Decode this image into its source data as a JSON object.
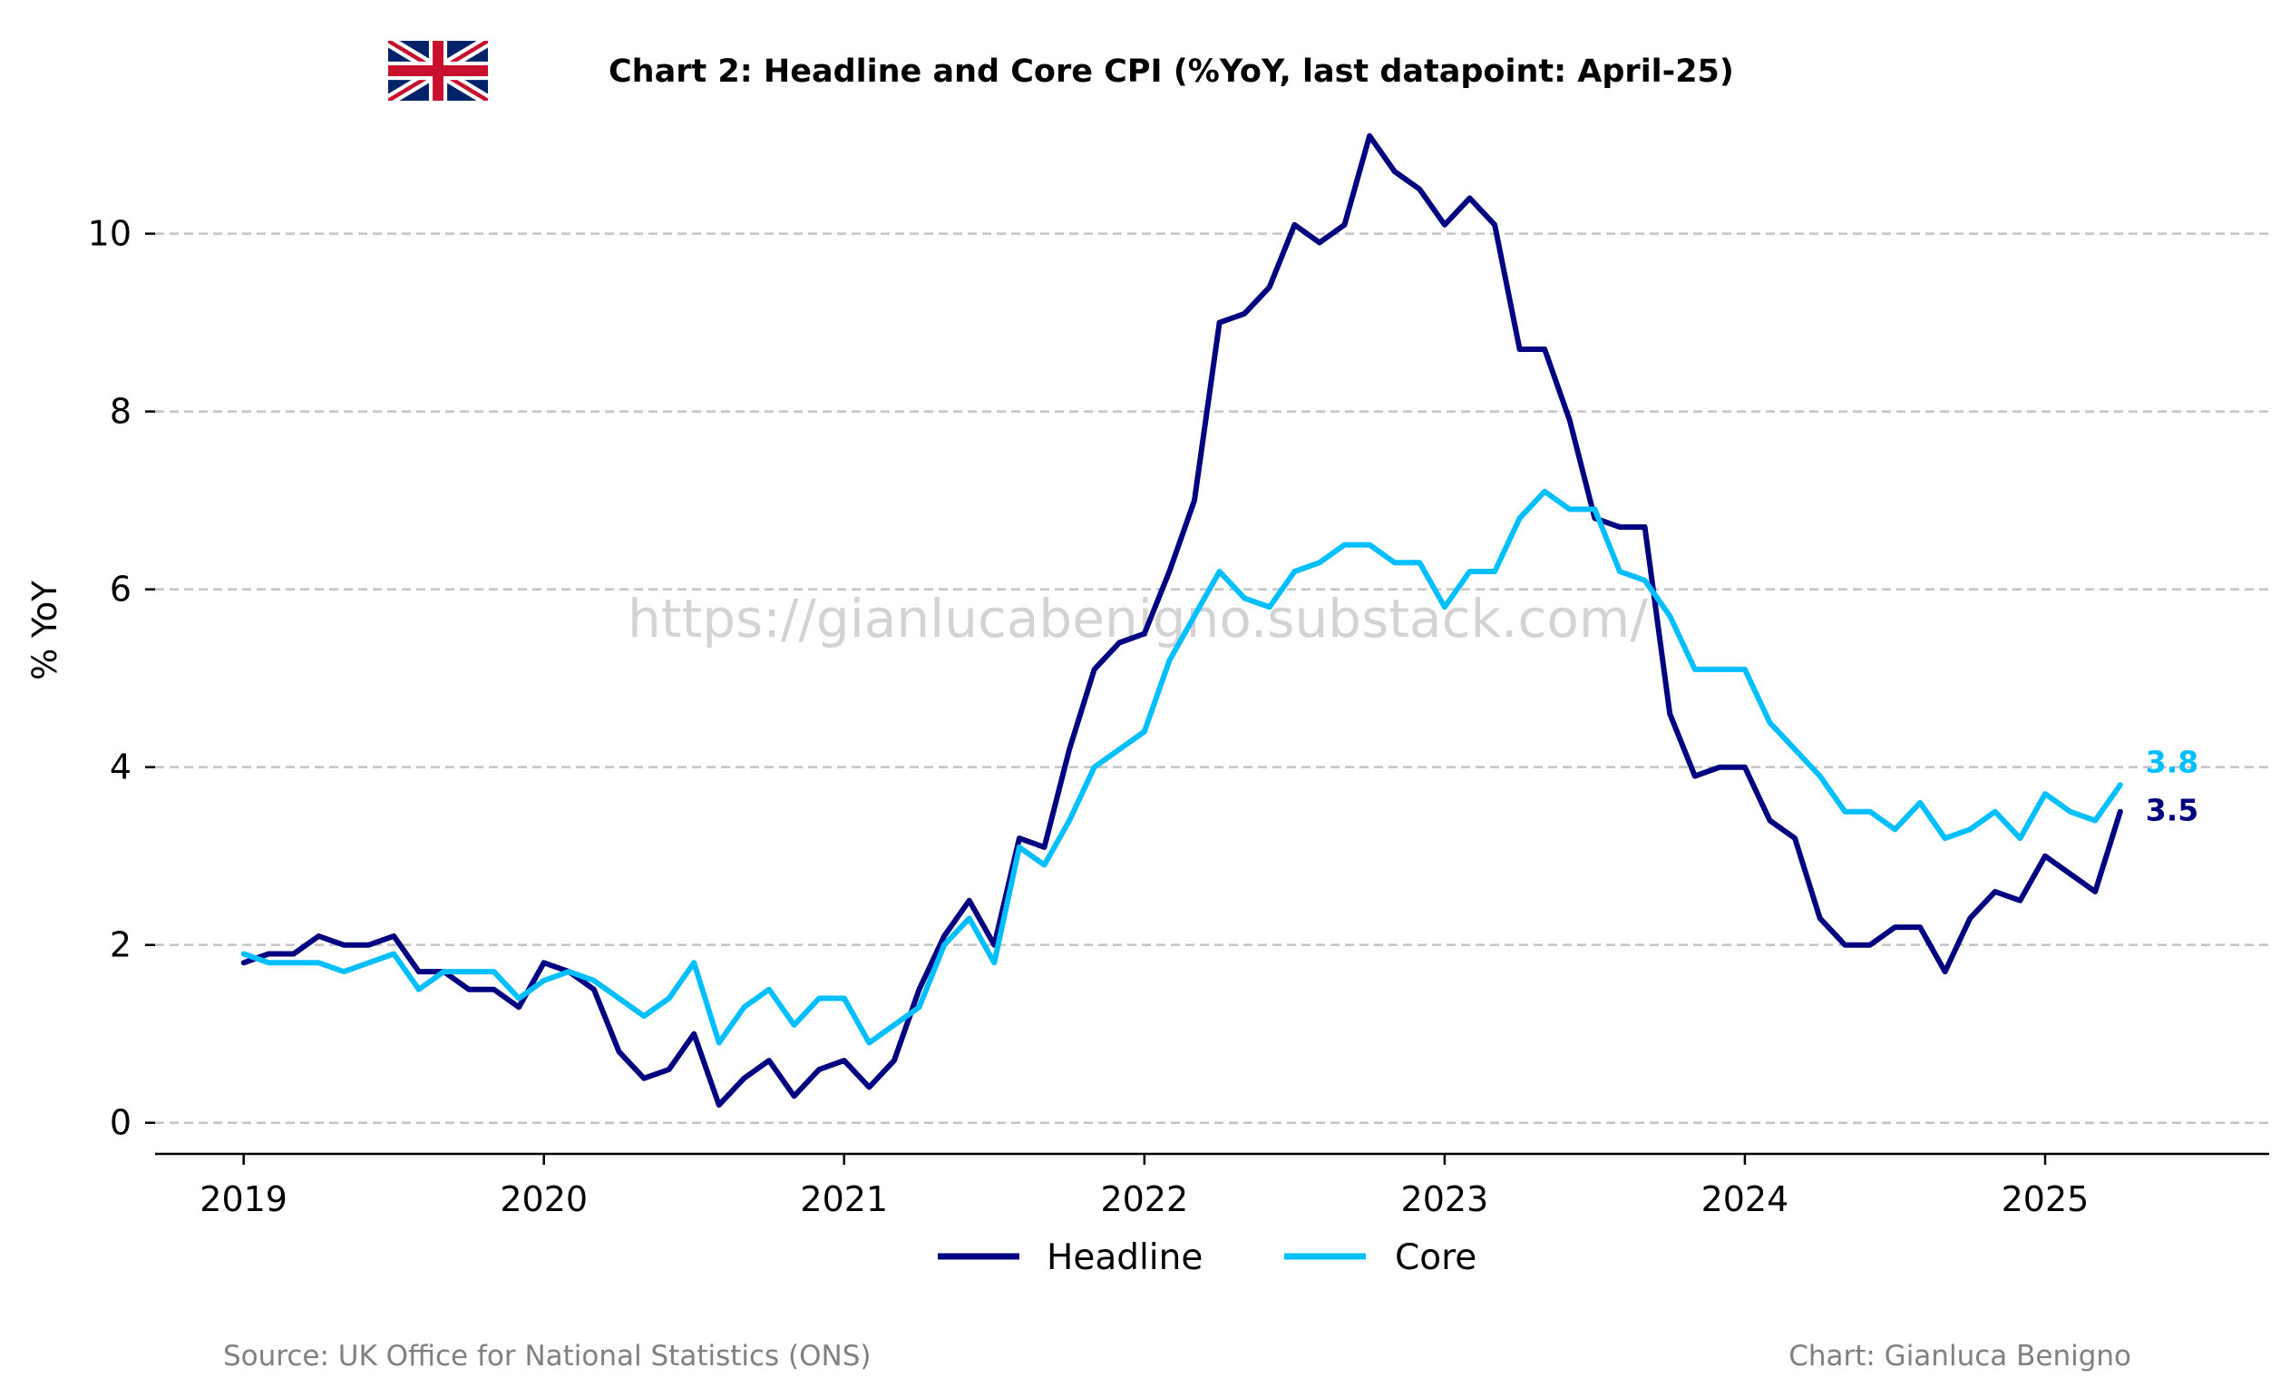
{
  "chart_data": {
    "type": "line",
    "title": "Chart 2: Headline and Core CPI (%YoY, last datapoint: April-25)",
    "ylabel": "% YoY",
    "xlabel": "",
    "ylim": [
      -0.35,
      11.2
    ],
    "xlim": [
      "2018-09-15",
      "2025-09-30"
    ],
    "y_ticks": [
      0,
      2,
      4,
      6,
      8,
      10
    ],
    "x_ticks": [
      "2019",
      "2020",
      "2021",
      "2022",
      "2023",
      "2024",
      "2025"
    ],
    "grid": "horizontal dashed",
    "legend_position": "bottom-center",
    "x_start": "2019-01",
    "frequency": "monthly",
    "series": [
      {
        "name": "Headline",
        "color": "#000080",
        "end_label": "3.5",
        "values": [
          1.8,
          1.9,
          1.9,
          2.1,
          2.0,
          2.0,
          2.1,
          1.7,
          1.7,
          1.5,
          1.5,
          1.3,
          1.8,
          1.7,
          1.5,
          0.8,
          0.5,
          0.6,
          1.0,
          0.2,
          0.5,
          0.7,
          0.3,
          0.6,
          0.7,
          0.4,
          0.7,
          1.5,
          2.1,
          2.5,
          2.0,
          3.2,
          3.1,
          4.2,
          5.1,
          5.4,
          5.5,
          6.2,
          7.0,
          9.0,
          9.1,
          9.4,
          10.1,
          9.9,
          10.1,
          11.1,
          10.7,
          10.5,
          10.1,
          10.4,
          10.1,
          8.7,
          8.7,
          7.9,
          6.8,
          6.7,
          6.7,
          4.6,
          3.9,
          4.0,
          4.0,
          3.4,
          3.2,
          2.3,
          2.0,
          2.0,
          2.2,
          2.2,
          1.7,
          2.3,
          2.6,
          2.5,
          3.0,
          2.8,
          2.6,
          3.5
        ]
      },
      {
        "name": "Core",
        "color": "#00BFFF",
        "end_label": "3.8",
        "values": [
          1.9,
          1.8,
          1.8,
          1.8,
          1.7,
          1.8,
          1.9,
          1.5,
          1.7,
          1.7,
          1.7,
          1.4,
          1.6,
          1.7,
          1.6,
          1.4,
          1.2,
          1.4,
          1.8,
          0.9,
          1.3,
          1.5,
          1.1,
          1.4,
          1.4,
          0.9,
          1.1,
          1.3,
          2.0,
          2.3,
          1.8,
          3.1,
          2.9,
          3.4,
          4.0,
          4.2,
          4.4,
          5.2,
          5.7,
          6.2,
          5.9,
          5.8,
          6.2,
          6.3,
          6.5,
          6.5,
          6.3,
          6.3,
          5.8,
          6.2,
          6.2,
          6.8,
          7.1,
          6.9,
          6.9,
          6.2,
          6.1,
          5.7,
          5.1,
          5.1,
          5.1,
          4.5,
          4.2,
          3.9,
          3.5,
          3.5,
          3.3,
          3.6,
          3.2,
          3.3,
          3.5,
          3.2,
          3.7,
          3.5,
          3.4,
          3.8
        ]
      }
    ]
  },
  "watermark": "https://gianlucabenigno.substack.com/",
  "footer": {
    "source": "Source: UK Office for National Statistics (ONS)",
    "credit": "Chart: Gianluca Benigno"
  },
  "flag_icon": "uk-flag-icon"
}
